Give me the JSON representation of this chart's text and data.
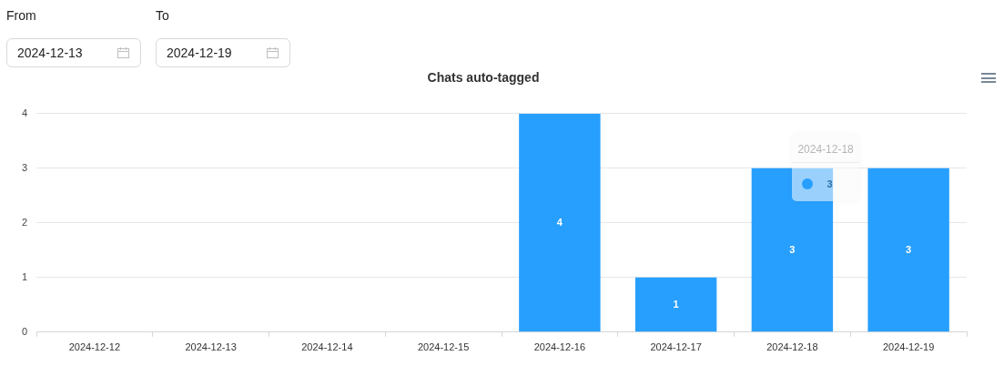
{
  "chart_data": {
    "type": "bar",
    "title": "Chats auto-tagged",
    "categories": [
      "2024-12-12",
      "2024-12-13",
      "2024-12-14",
      "2024-12-15",
      "2024-12-16",
      "2024-12-17",
      "2024-12-18",
      "2024-12-19"
    ],
    "values": [
      0,
      0,
      0,
      0,
      4,
      1,
      3,
      3
    ],
    "color": "#279ffe",
    "value_labels": [
      null,
      null,
      null,
      null,
      "4",
      "1",
      "3",
      "3"
    ],
    "ylim": [
      0,
      4
    ],
    "yticks": [
      0,
      1,
      2,
      3,
      4
    ],
    "grid": "y",
    "annotations": [
      "From",
      "2024-12-13",
      "To",
      "2024-12-19",
      {
        "text": "2024-12-18",
        "x": "2024-12-18",
        "y": 3
      },
      "3"
    ]
  }
}
